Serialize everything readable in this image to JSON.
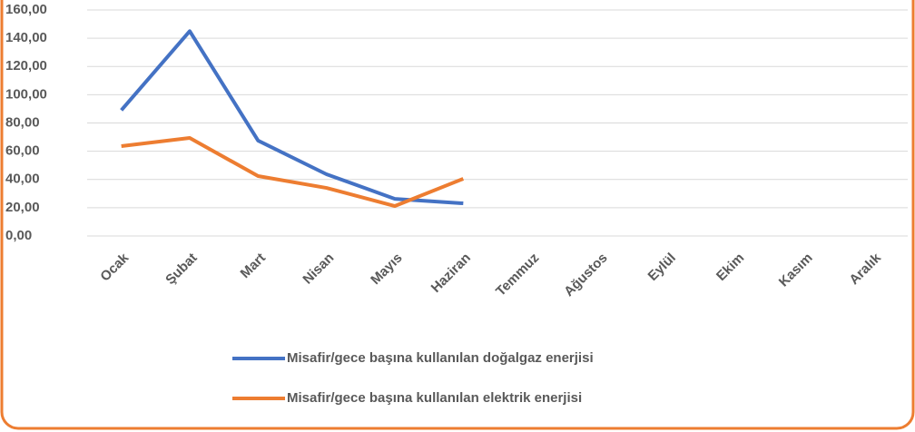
{
  "chart_data": {
    "type": "line",
    "categories": [
      "Ocak",
      "Şubat",
      "Mart",
      "Nisan",
      "Mayıs",
      "Haziran",
      "Temmuz",
      "Ağustos",
      "Eylül",
      "Ekim",
      "Kasım",
      "Aralık"
    ],
    "series": [
      {
        "name": "Misafir/gece başına kullanılan doğalgaz enerjisi",
        "color": "#4472c4",
        "values": [
          89,
          145,
          67.5,
          43.7,
          26.3,
          23.1,
          null,
          null,
          null,
          null,
          null,
          null
        ]
      },
      {
        "name": "Misafir/gece başına kullanılan elektrik enerjisi",
        "color": "#ed7d31",
        "values": [
          63.6,
          69.4,
          42.4,
          34,
          21.2,
          40.5,
          null,
          null,
          null,
          null,
          null,
          null
        ]
      }
    ],
    "ylim": [
      0,
      160
    ],
    "yticks": [
      {
        "value": 0,
        "label": "0,00"
      },
      {
        "value": 20,
        "label": "20,00"
      },
      {
        "value": 40,
        "label": "40,00"
      },
      {
        "value": 60,
        "label": "60,00"
      },
      {
        "value": 80,
        "label": "80,00"
      },
      {
        "value": 100,
        "label": "100,00"
      },
      {
        "value": 120,
        "label": "120,00"
      },
      {
        "value": 140,
        "label": "140,00"
      },
      {
        "value": 160,
        "label": "160,00"
      }
    ],
    "grid": true
  }
}
